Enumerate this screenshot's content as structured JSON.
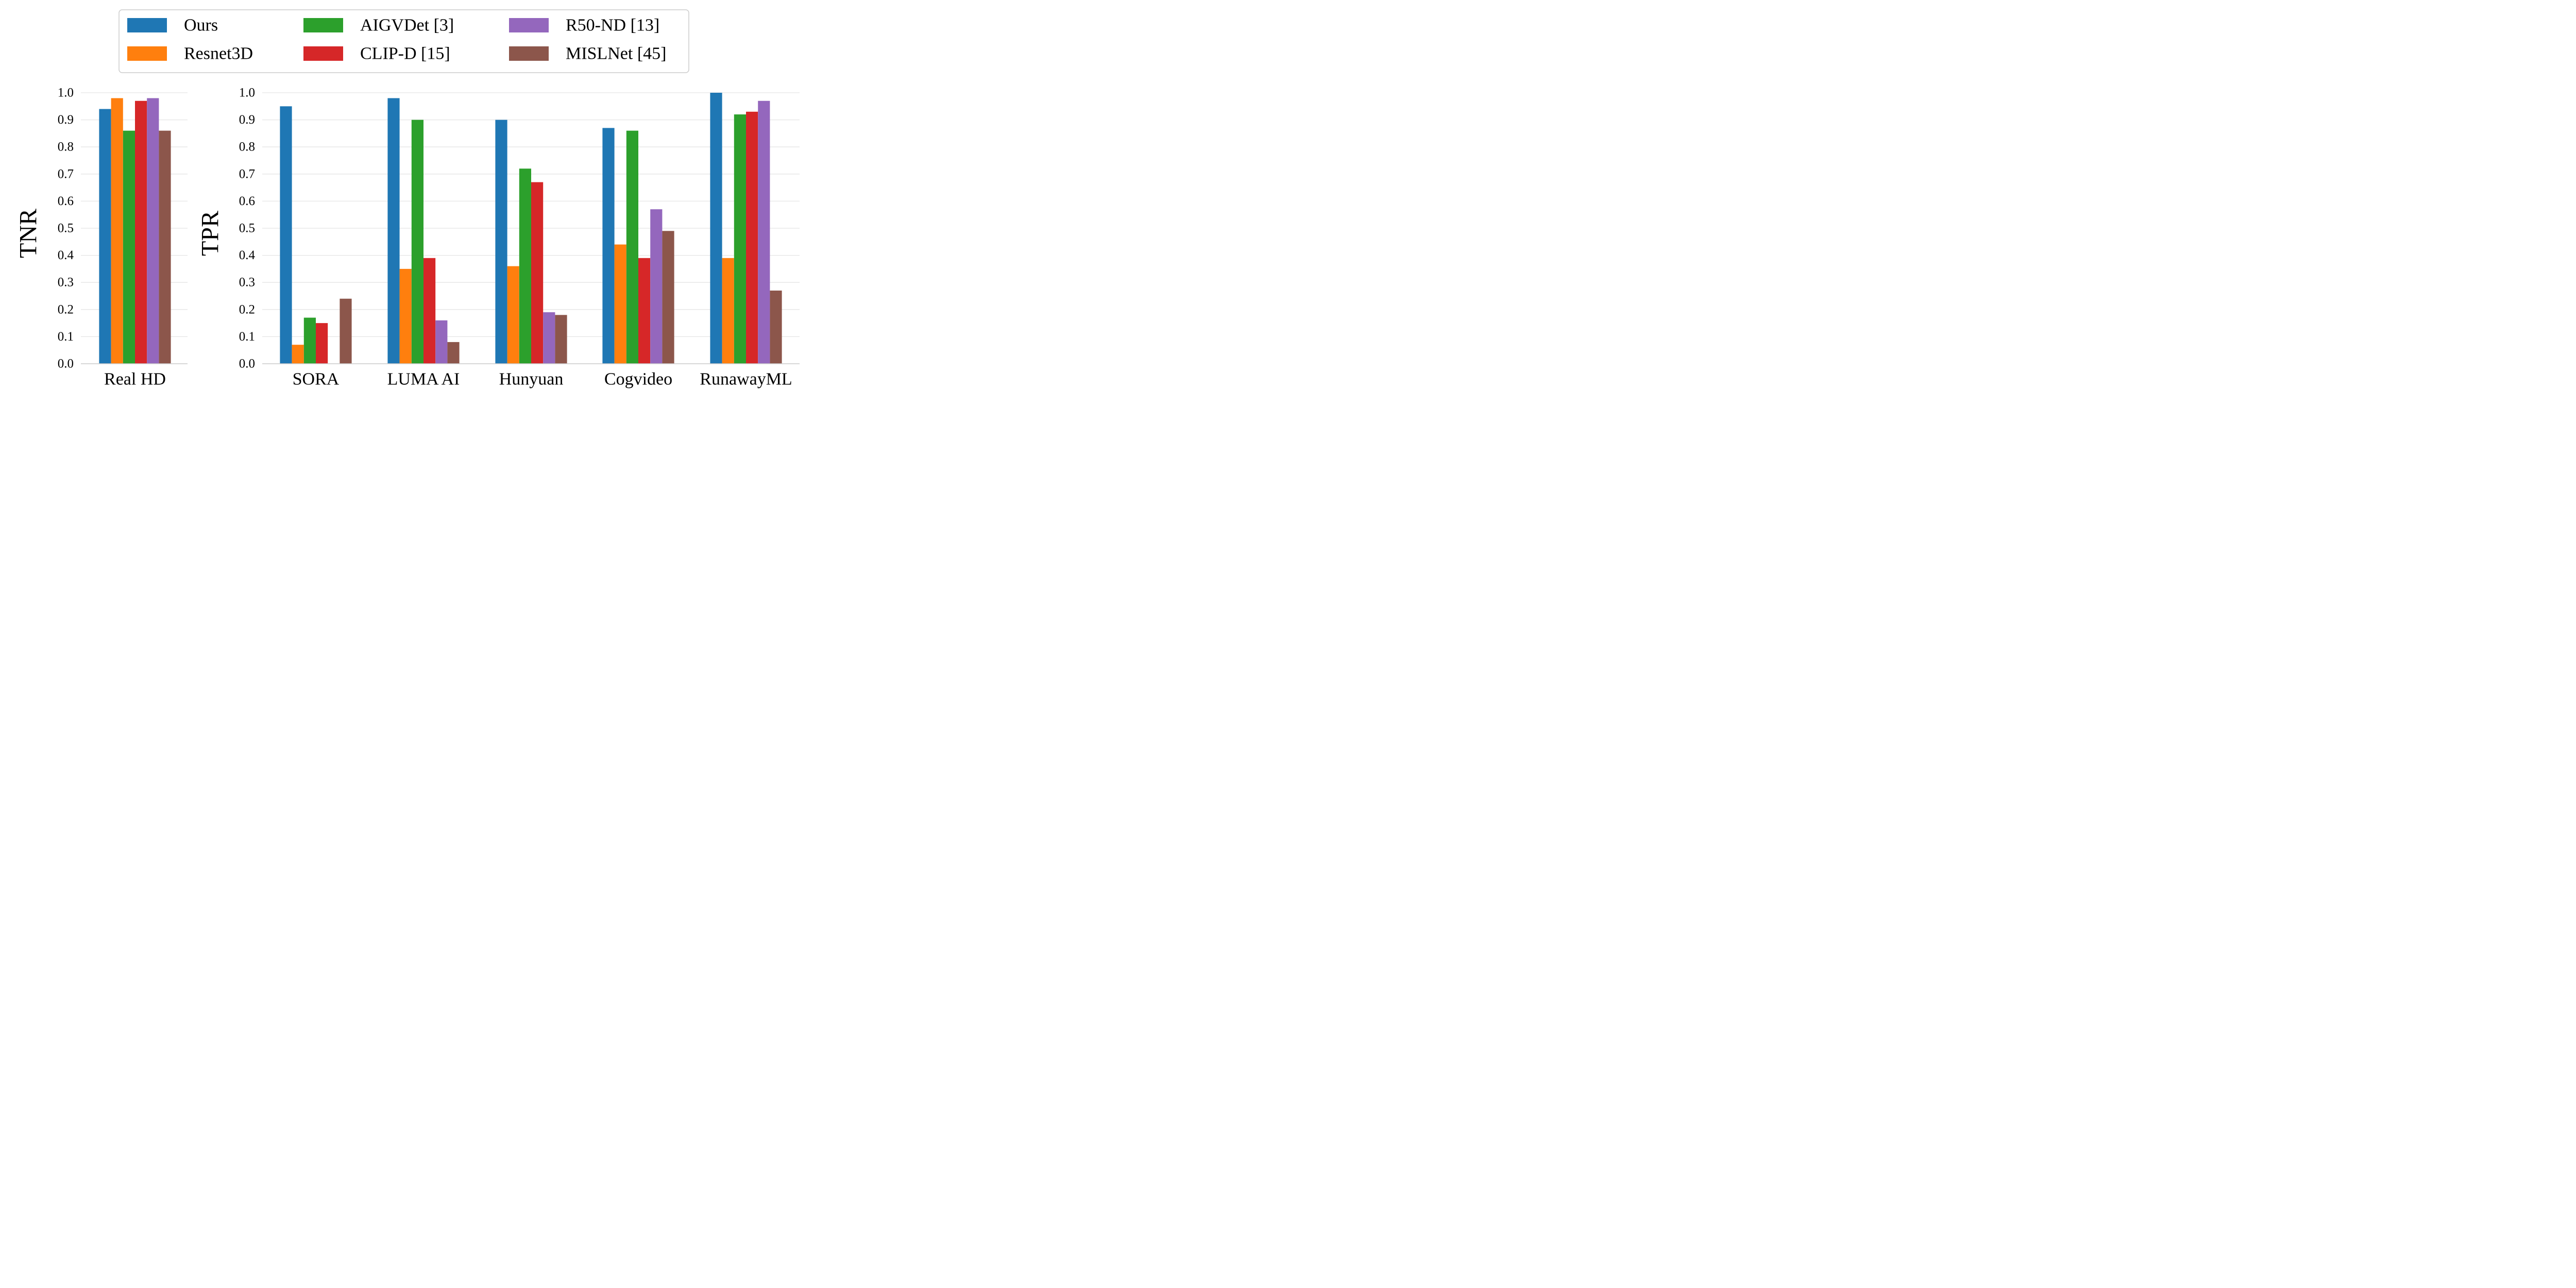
{
  "chart_data": [
    {
      "type": "bar",
      "ylabel": "TNR",
      "xlabel": "",
      "ylim": [
        0,
        1.0
      ],
      "yticks": [
        "0.0",
        "0.1",
        "0.2",
        "0.3",
        "0.4",
        "0.5",
        "0.6",
        "0.7",
        "0.8",
        "0.9",
        "1.0"
      ],
      "grid": "horizontal",
      "categories": [
        "Real HD"
      ],
      "series": [
        {
          "name": "Ours",
          "color": "#1f77b4",
          "values": [
            0.94
          ]
        },
        {
          "name": "Resnet3D",
          "color": "#ff7f0e",
          "values": [
            0.98
          ]
        },
        {
          "name": "AIGVDet [3]",
          "color": "#2ca02c",
          "values": [
            0.86
          ]
        },
        {
          "name": "CLIP-D [15]",
          "color": "#d62728",
          "values": [
            0.97
          ]
        },
        {
          "name": "R50-ND [13]",
          "color": "#9467bd",
          "values": [
            0.98
          ]
        },
        {
          "name": "MISLNet [45]",
          "color": "#8c564b",
          "values": [
            0.86
          ]
        }
      ]
    },
    {
      "type": "bar",
      "ylabel": "TPR",
      "xlabel": "",
      "ylim": [
        0,
        1.0
      ],
      "yticks": [
        "0.0",
        "0.1",
        "0.2",
        "0.3",
        "0.4",
        "0.5",
        "0.6",
        "0.7",
        "0.8",
        "0.9",
        "1.0"
      ],
      "grid": "horizontal",
      "categories": [
        "SORA",
        "LUMA AI",
        "Hunyuan",
        "Cogvideo",
        "RunawayML"
      ],
      "series": [
        {
          "name": "Ours",
          "color": "#1f77b4",
          "values": [
            0.95,
            0.98,
            0.9,
            0.87,
            1.0
          ]
        },
        {
          "name": "Resnet3D",
          "color": "#ff7f0e",
          "values": [
            0.07,
            0.35,
            0.36,
            0.44,
            0.39
          ]
        },
        {
          "name": "AIGVDet [3]",
          "color": "#2ca02c",
          "values": [
            0.17,
            0.9,
            0.72,
            0.86,
            0.92
          ]
        },
        {
          "name": "CLIP-D [15]",
          "color": "#d62728",
          "values": [
            0.15,
            0.39,
            0.67,
            0.39,
            0.93
          ]
        },
        {
          "name": "R50-ND [13]",
          "color": "#9467bd",
          "values": [
            0.0,
            0.16,
            0.19,
            0.57,
            0.97
          ]
        },
        {
          "name": "MISLNet [45]",
          "color": "#8c564b",
          "values": [
            0.24,
            0.08,
            0.18,
            0.49,
            0.27
          ]
        }
      ]
    }
  ],
  "legend": {
    "placement": "top-center",
    "items": [
      {
        "label": "Ours",
        "color": "#1f77b4"
      },
      {
        "label": "Resnet3D",
        "color": "#ff7f0e"
      },
      {
        "label": "AIGVDet [3]",
        "color": "#2ca02c"
      },
      {
        "label": "CLIP-D [15]",
        "color": "#d62728"
      },
      {
        "label": "R50-ND [13]",
        "color": "#9467bd"
      },
      {
        "label": "MISLNet [45]",
        "color": "#8c564b"
      }
    ]
  }
}
